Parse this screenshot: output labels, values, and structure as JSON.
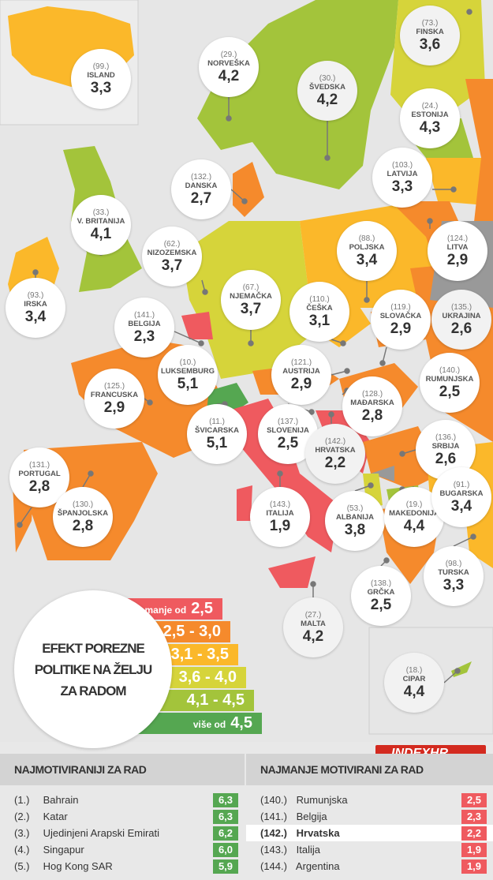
{
  "colors": {
    "red": "#ef5a5f",
    "orange": "#f58a2c",
    "light_orange": "#fbb82a",
    "yellow_green": "#d6d43a",
    "light_green": "#a3c43b",
    "green": "#55a751"
  },
  "countries": [
    {
      "rank": "(99.)",
      "name": "ISLAND",
      "value": "3,3"
    },
    {
      "rank": "(29.)",
      "name": "NORVEŠKA",
      "value": "4,2"
    },
    {
      "rank": "(30.)",
      "name": "ŠVEDSKA",
      "value": "4,2"
    },
    {
      "rank": "(73.)",
      "name": "FINSKA",
      "value": "3,6"
    },
    {
      "rank": "(24.)",
      "name": "ESTONIJA",
      "value": "4,3"
    },
    {
      "rank": "(132.)",
      "name": "DANSKA",
      "value": "2,7"
    },
    {
      "rank": "(103.)",
      "name": "LATVIJA",
      "value": "3,3"
    },
    {
      "rank": "(33.)",
      "name": "V. BRITANIJA",
      "value": "4,1"
    },
    {
      "rank": "(62.)",
      "name": "NIZOZEMSKA",
      "value": "3,7"
    },
    {
      "rank": "(88.)",
      "name": "POLJSKA",
      "value": "3,4"
    },
    {
      "rank": "(124.)",
      "name": "LITVA",
      "value": "2,9"
    },
    {
      "rank": "(93.)",
      "name": "IRSKA",
      "value": "3,4"
    },
    {
      "rank": "(67.)",
      "name": "NJEMAČKA",
      "value": "3,7"
    },
    {
      "rank": "(141.)",
      "name": "BELGIJA",
      "value": "2,3"
    },
    {
      "rank": "(110.)",
      "name": "ČEŠKA",
      "value": "3,1"
    },
    {
      "rank": "(119.)",
      "name": "SLOVAČKA",
      "value": "2,9"
    },
    {
      "rank": "(135.)",
      "name": "UKRAJINA",
      "value": "2,6"
    },
    {
      "rank": "(10.)",
      "name": "LUKSEMBURG",
      "value": "5,1"
    },
    {
      "rank": "(121.)",
      "name": "AUSTRIJA",
      "value": "2,9"
    },
    {
      "rank": "(125.)",
      "name": "FRANCUSKA",
      "value": "2,9"
    },
    {
      "rank": "(140.)",
      "name": "RUMUNJSKA",
      "value": "2,5"
    },
    {
      "rank": "(128.)",
      "name": "MAĐARSKA",
      "value": "2,8"
    },
    {
      "rank": "(137.)",
      "name": "SLOVENIJA",
      "value": "2,5"
    },
    {
      "rank": "(11.)",
      "name": "ŠVICARSKA",
      "value": "5,1"
    },
    {
      "rank": "(136.)",
      "name": "SRBIJA",
      "value": "2,6"
    },
    {
      "rank": "(142.)",
      "name": "HRVATSKA",
      "value": "2,2"
    },
    {
      "rank": "(131.)",
      "name": "PORTUGAL",
      "value": "2,8"
    },
    {
      "rank": "(130.)",
      "name": "ŠPANJOLSKA",
      "value": "2,8"
    },
    {
      "rank": "(143.)",
      "name": "ITALIJA",
      "value": "1,9"
    },
    {
      "rank": "(53.)",
      "name": "ALBANIJA",
      "value": "3,8"
    },
    {
      "rank": "(19.)",
      "name": "MAKEDONIJA",
      "value": "4,4"
    },
    {
      "rank": "(91.)",
      "name": "BUGARSKA",
      "value": "3,4"
    },
    {
      "rank": "(98.)",
      "name": "TURSKA",
      "value": "3,3"
    },
    {
      "rank": "(138.)",
      "name": "GRČKA",
      "value": "2,5"
    },
    {
      "rank": "(27.)",
      "name": "MALTA",
      "value": "4,2"
    },
    {
      "rank": "(18.)",
      "name": "CIPAR",
      "value": "4,4"
    }
  ],
  "legend": {
    "title": "EFEKT POREZNE POLITIKE NA ŽELJU ZA RADOM",
    "items": [
      {
        "prefix": "manje od",
        "range": "2,5"
      },
      {
        "prefix": "",
        "range": "2,5 - 3,0"
      },
      {
        "prefix": "",
        "range": "3,1 - 3,5"
      },
      {
        "prefix": "",
        "range": "3,6 - 4,0"
      },
      {
        "prefix": "",
        "range": "4,1 - 4,5"
      },
      {
        "prefix": "više od",
        "range": "4,5"
      }
    ]
  },
  "logo": "INDEXHR",
  "most": {
    "title": "NAJMOTIVIRANIJI ZA RAD",
    "rows": [
      {
        "rank": "(1.)",
        "name": "Bahrain",
        "score": "6,3"
      },
      {
        "rank": "(2.)",
        "name": "Katar",
        "score": "6,3"
      },
      {
        "rank": "(3.)",
        "name": "Ujedinjeni Arapski Emirati",
        "score": "6,2"
      },
      {
        "rank": "(4.)",
        "name": "Singapur",
        "score": "6,0"
      },
      {
        "rank": "(5.)",
        "name": "Hog Kong SAR",
        "score": "5,9"
      }
    ]
  },
  "least": {
    "title": "NAJMANJE MOTIVIRANI ZA RAD",
    "rows": [
      {
        "rank": "(140.)",
        "name": "Rumunjska",
        "score": "2,5"
      },
      {
        "rank": "(141.)",
        "name": "Belgija",
        "score": "2,3"
      },
      {
        "rank": "(142.)",
        "name": "Hrvatska",
        "score": "2,2"
      },
      {
        "rank": "(143.)",
        "name": "Italija",
        "score": "1,9"
      },
      {
        "rank": "(144.)",
        "name": "Argentina",
        "score": "1,9"
      }
    ]
  }
}
